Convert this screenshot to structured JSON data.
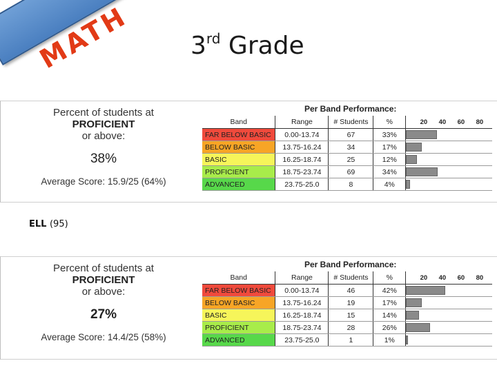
{
  "banner": {
    "text": "MATH"
  },
  "title": {
    "main": "3",
    "sup": "rd",
    "rest": " Grade"
  },
  "colors": {
    "far_below_basic": "#f04a3c",
    "below_basic": "#f7a526",
    "basic": "#f6f55a",
    "proficient": "#a8ec4a",
    "advanced": "#57d84a",
    "bar": "#8a8a8a",
    "ribbon": "#5a8ccb",
    "ribbon_text": "#e23a16"
  },
  "headers": {
    "table_title": "Per Band Performance:",
    "band": "Band",
    "range": "Range",
    "students": "# Students",
    "pct": "%",
    "axis": [
      "20",
      "40",
      "60",
      "80"
    ]
  },
  "panels": [
    {
      "summary": {
        "line1": "Percent of students at",
        "line2": "PROFICIENT",
        "line3": "or above:",
        "pct": "38%",
        "avg": "Average Score: 15.9/25 (64%)"
      },
      "rows": [
        {
          "band": "FAR BELOW BASIC",
          "range": "0.00-13.74",
          "students": "67",
          "pct": "33%",
          "value": 33
        },
        {
          "band": "BELOW BASIC",
          "range": "13.75-16.24",
          "students": "34",
          "pct": "17%",
          "value": 17
        },
        {
          "band": "BASIC",
          "range": "16.25-18.74",
          "students": "25",
          "pct": "12%",
          "value": 12
        },
        {
          "band": "PROFICIENT",
          "range": "18.75-23.74",
          "students": "69",
          "pct": "34%",
          "value": 34
        },
        {
          "band": "ADVANCED",
          "range": "23.75-25.0",
          "students": "8",
          "pct": "4%",
          "value": 4
        }
      ]
    },
    {
      "summary": {
        "line1": "Percent of students at",
        "line2": "PROFICIENT",
        "line3": "or above:",
        "pct": "27%",
        "avg": "Average Score: 14.4/25 (58%)"
      },
      "rows": [
        {
          "band": "FAR BELOW BASIC",
          "range": "0.00-13.74",
          "students": "46",
          "pct": "42%",
          "value": 42
        },
        {
          "band": "BELOW BASIC",
          "range": "13.75-16.24",
          "students": "19",
          "pct": "17%",
          "value": 17
        },
        {
          "band": "BASIC",
          "range": "16.25-18.74",
          "students": "15",
          "pct": "14%",
          "value": 14
        },
        {
          "band": "PROFICIENT",
          "range": "18.75-23.74",
          "students": "28",
          "pct": "26%",
          "value": 26
        },
        {
          "band": "ADVANCED",
          "range": "23.75-25.0",
          "students": "1",
          "pct": "1%",
          "value": 1
        }
      ]
    }
  ],
  "ell": {
    "label": "ELL",
    "count": "(95)"
  }
}
